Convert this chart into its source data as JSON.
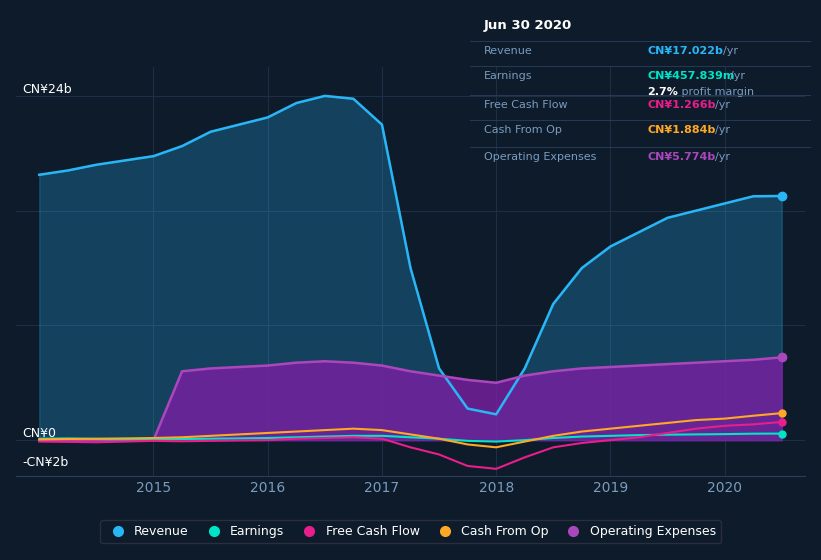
{
  "bg_color": "#0d1b2a",
  "plot_bg_color": "#0d1b2a",
  "grid_color": "#1e3048",
  "title_box": {
    "date": "Jun 30 2020",
    "rows": [
      {
        "label": "Revenue",
        "value": "CN¥17.022b",
        "unit": "/yr",
        "value_color": "#29b6f6"
      },
      {
        "label": "Earnings",
        "value": "CN¥457.839m",
        "unit": "/yr",
        "value_color": "#00e5c8"
      },
      {
        "label": "",
        "value": "2.7%",
        "unit": " profit margin",
        "value_color": "#ffffff"
      },
      {
        "label": "Free Cash Flow",
        "value": "CN¥1.266b",
        "unit": "/yr",
        "value_color": "#e91e8c"
      },
      {
        "label": "Cash From Op",
        "value": "CN¥1.884b",
        "unit": "/yr",
        "value_color": "#ffa726"
      },
      {
        "label": "Operating Expenses",
        "value": "CN¥5.774b",
        "unit": "/yr",
        "value_color": "#ab47bc"
      }
    ]
  },
  "x_years": [
    2014.0,
    2014.25,
    2014.5,
    2014.75,
    2015.0,
    2015.25,
    2015.5,
    2015.75,
    2016.0,
    2016.25,
    2016.5,
    2016.75,
    2017.0,
    2017.25,
    2017.5,
    2017.75,
    2018.0,
    2018.25,
    2018.5,
    2018.75,
    2019.0,
    2019.25,
    2019.5,
    2019.75,
    2020.0,
    2020.25,
    2020.5
  ],
  "revenue": [
    18.5,
    18.8,
    19.2,
    19.5,
    19.8,
    20.5,
    21.5,
    22.0,
    22.5,
    23.5,
    24.0,
    23.8,
    22.0,
    12.0,
    5.0,
    2.2,
    1.8,
    5.0,
    9.5,
    12.0,
    13.5,
    14.5,
    15.5,
    16.0,
    16.5,
    17.0,
    17.022
  ],
  "operating_expenses": [
    0.0,
    0.0,
    0.0,
    0.0,
    0.0,
    4.8,
    5.0,
    5.1,
    5.2,
    5.4,
    5.5,
    5.4,
    5.2,
    4.8,
    4.5,
    4.2,
    4.0,
    4.5,
    4.8,
    5.0,
    5.1,
    5.2,
    5.3,
    5.4,
    5.5,
    5.6,
    5.774
  ],
  "earnings": [
    0.1,
    0.12,
    0.08,
    0.05,
    0.05,
    0.08,
    0.1,
    0.12,
    0.15,
    0.2,
    0.25,
    0.3,
    0.3,
    0.2,
    0.1,
    -0.05,
    -0.1,
    0.0,
    0.15,
    0.25,
    0.3,
    0.35,
    0.38,
    0.4,
    0.42,
    0.45,
    0.458
  ],
  "free_cash_flow": [
    -0.1,
    -0.12,
    -0.15,
    -0.1,
    -0.05,
    -0.08,
    -0.05,
    -0.02,
    0.0,
    0.1,
    0.15,
    0.2,
    0.1,
    -0.5,
    -1.0,
    -1.8,
    -2.0,
    -1.2,
    -0.5,
    -0.2,
    0.0,
    0.2,
    0.5,
    0.8,
    1.0,
    1.1,
    1.266
  ],
  "cash_from_op": [
    0.05,
    0.08,
    0.1,
    0.12,
    0.15,
    0.2,
    0.3,
    0.4,
    0.5,
    0.6,
    0.7,
    0.8,
    0.7,
    0.4,
    0.1,
    -0.3,
    -0.5,
    -0.1,
    0.3,
    0.6,
    0.8,
    1.0,
    1.2,
    1.4,
    1.5,
    1.7,
    1.884
  ],
  "colors": {
    "revenue": "#29b6f6",
    "operating_expenses": "#7b1fa2",
    "operating_expenses_line": "#ab47bc",
    "earnings": "#00e5c8",
    "free_cash_flow": "#e91e8c",
    "cash_from_op": "#ffa726"
  },
  "ylim": [
    -2.5,
    26
  ],
  "xlim": [
    2013.8,
    2020.7
  ],
  "xticks": [
    2015,
    2016,
    2017,
    2018,
    2019,
    2020
  ],
  "legend_items": [
    {
      "label": "Revenue",
      "color": "#29b6f6"
    },
    {
      "label": "Earnings",
      "color": "#00e5c8"
    },
    {
      "label": "Free Cash Flow",
      "color": "#e91e8c"
    },
    {
      "label": "Cash From Op",
      "color": "#ffa726"
    },
    {
      "label": "Operating Expenses",
      "color": "#ab47bc"
    }
  ]
}
